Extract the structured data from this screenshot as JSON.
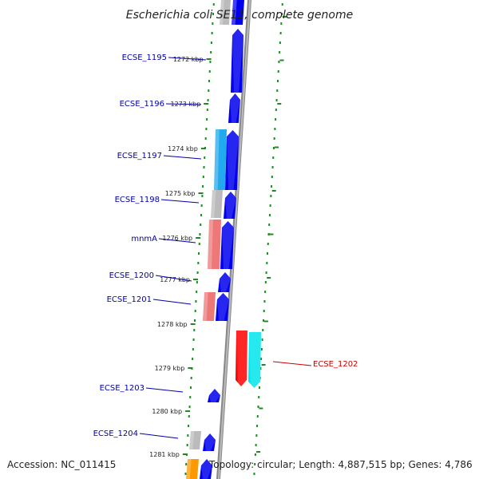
{
  "title": "Escherichia coli SE11, complete genome",
  "footer": {
    "accession": "Accession: NC_011415",
    "summary": "Topology: circular; Length: 4,887,515 bp; Genes: 4,786"
  },
  "colors": {
    "forward_cds": "#0000ee",
    "forward_cds_alt": "#00ddee",
    "reverse_cds_red": "#ff0000",
    "reverse_cds_cyan": "#00e5ee",
    "gray_feature": "#bbbbbb",
    "salmon_feature": "#ee7777",
    "sky_feature": "#22aaee",
    "orange_feature": "#ff9900",
    "ticks": "#228822",
    "backbone": "#888888",
    "label_blue": "#0000aa",
    "label_red": "#cc0000"
  },
  "map": {
    "ticks": [
      {
        "label": "1272 kbp"
      },
      {
        "label": "1273 kbp"
      },
      {
        "label": "1274 kbp"
      },
      {
        "label": "1275 kbp"
      },
      {
        "label": "1276 kbp"
      },
      {
        "label": "1277 kbp"
      },
      {
        "label": "1278 kbp"
      },
      {
        "label": "1279 kbp"
      },
      {
        "label": "1280 kbp"
      },
      {
        "label": "1281 kbp"
      }
    ],
    "gene_labels": [
      {
        "text": "ECSE_1195",
        "color": "#0000aa"
      },
      {
        "text": "ECSE_1196",
        "color": "#0000aa"
      },
      {
        "text": "ECSE_1197",
        "color": "#0000aa"
      },
      {
        "text": "ECSE_1198",
        "color": "#0000aa"
      },
      {
        "text": "mnmA",
        "color": "#0000aa"
      },
      {
        "text": "ECSE_1200",
        "color": "#0000aa"
      },
      {
        "text": "ECSE_1201",
        "color": "#0000aa"
      },
      {
        "text": "ECSE_1202",
        "color": "#cc0000"
      },
      {
        "text": "ECSE_1203",
        "color": "#0000aa"
      },
      {
        "text": "ECSE_1204",
        "color": "#0000aa"
      }
    ]
  }
}
